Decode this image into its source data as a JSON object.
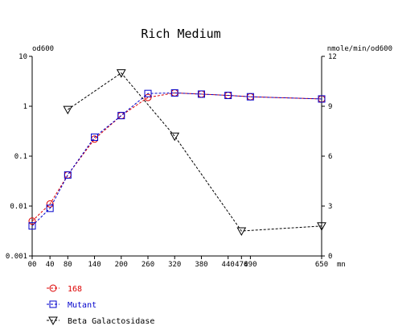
{
  "chart_data": {
    "type": "line",
    "title": "Rich Medium",
    "xlabel": "mn",
    "ylabel_left": "od600",
    "ylabel_right": "nmole/min/od600",
    "x_ticks": [
      0,
      40,
      80,
      140,
      200,
      260,
      320,
      380,
      440,
      470,
      490,
      650
    ],
    "x_tick_labels": [
      "00",
      "40",
      "80",
      "140",
      "200",
      "260",
      "320",
      "380",
      "440",
      "470",
      "490",
      "650"
    ],
    "xlim": [
      0,
      650
    ],
    "y_left_scale": "log",
    "y_left_ticks": [
      0.001,
      0.01,
      0.1,
      1,
      10
    ],
    "y_left_tick_labels": [
      "0.001",
      "0.01",
      "0.1",
      "1",
      "10"
    ],
    "ylim_left": [
      0.001,
      10
    ],
    "y_right_ticks": [
      0,
      3,
      6,
      9,
      12
    ],
    "y_right_tick_labels": [
      "0",
      "3",
      "6",
      "9",
      "12"
    ],
    "ylim_right": [
      0,
      12
    ],
    "legend_position": "bottom-left",
    "series": [
      {
        "name": "168",
        "axis": "left",
        "color": "#dd0000",
        "marker": "circle",
        "x": [
          0,
          40,
          80,
          140,
          200,
          260,
          320,
          380,
          440,
          490,
          650
        ],
        "y": [
          0.005,
          0.011,
          0.042,
          0.22,
          0.65,
          1.5,
          1.85,
          1.75,
          1.65,
          1.55,
          1.4
        ]
      },
      {
        "name": "Mutant",
        "axis": "left",
        "color": "#0000cc",
        "marker": "square",
        "x": [
          0,
          40,
          80,
          140,
          200,
          260,
          320,
          380,
          440,
          490,
          650
        ],
        "y": [
          0.004,
          0.009,
          0.042,
          0.24,
          0.65,
          1.8,
          1.85,
          1.75,
          1.65,
          1.55,
          1.4
        ]
      },
      {
        "name": "Beta Galactosidase",
        "axis": "right",
        "color": "#000000",
        "marker": "triangle-down",
        "x": [
          80,
          200,
          320,
          470,
          650
        ],
        "y": [
          8.8,
          11.0,
          7.2,
          1.5,
          1.8
        ]
      }
    ]
  }
}
